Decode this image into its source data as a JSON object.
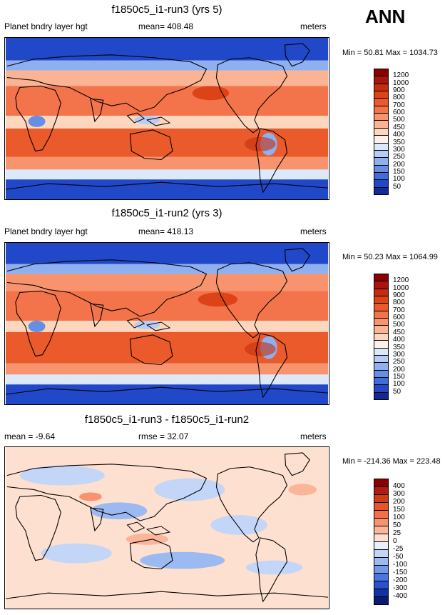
{
  "season": "ANN",
  "panels": [
    {
      "id": "run3",
      "title": "f1850c5_i1-run3 (yrs 5)",
      "left_label": "Planet bndry layer hgt",
      "center_label": "mean= 408.48",
      "right_label": "meters",
      "minmax": "Min =  50.81 Max = 1034.73",
      "mean_value": 408.48,
      "min_value": 50.81,
      "max_value": 1034.73
    },
    {
      "id": "run2",
      "title": "f1850c5_i1-run2 (yrs 3)",
      "left_label": "Planet bndry layer hgt",
      "center_label": "mean= 418.13",
      "right_label": "meters",
      "minmax": "Min =  50.23 Max = 1064.99",
      "mean_value": 418.13,
      "min_value": 50.23,
      "max_value": 1064.99
    },
    {
      "id": "diff",
      "title": "f1850c5_i1-run3 - f1850c5_i1-run2",
      "left_label": "mean =  -9.64",
      "center_label": "rmse =  32.07",
      "right_label": "meters",
      "minmax": "Min = -214.36 Max = 223.48",
      "mean_value": -9.64,
      "rmse_value": 32.07,
      "min_value": -214.36,
      "max_value": 223.48
    }
  ],
  "colorbars": {
    "field": {
      "labels": [
        "1200",
        "1000",
        "900",
        "800",
        "700",
        "600",
        "500",
        "450",
        "400",
        "350",
        "300",
        "250",
        "200",
        "150",
        "100",
        "50"
      ],
      "colors": [
        "#8b0000",
        "#a8150a",
        "#c42e0e",
        "#dc4418",
        "#ea5a2a",
        "#f3734a",
        "#f7936d",
        "#fab393",
        "#fcd6bd",
        "#fbf1ea",
        "#dce9fb",
        "#b6cdf6",
        "#8eaff0",
        "#658fe6",
        "#3f6ddc",
        "#2048c8",
        "#102b96"
      ]
    },
    "diff": {
      "labels": [
        "400",
        "300",
        "200",
        "150",
        "100",
        "50",
        "25",
        "0",
        "-25",
        "-50",
        "-100",
        "-150",
        "-200",
        "-300",
        "-400"
      ],
      "colors": [
        "#8b0000",
        "#b31c0c",
        "#d23c14",
        "#e85524",
        "#f37048",
        "#f89270",
        "#fbb599",
        "#fde0cf",
        "#e8f0fc",
        "#c3d6f8",
        "#9cbaf2",
        "#7398ea",
        "#4b75df",
        "#2a52cc",
        "#13339f",
        "#081c73"
      ]
    }
  },
  "icons": {
    "map": "world-map-contour-field"
  }
}
